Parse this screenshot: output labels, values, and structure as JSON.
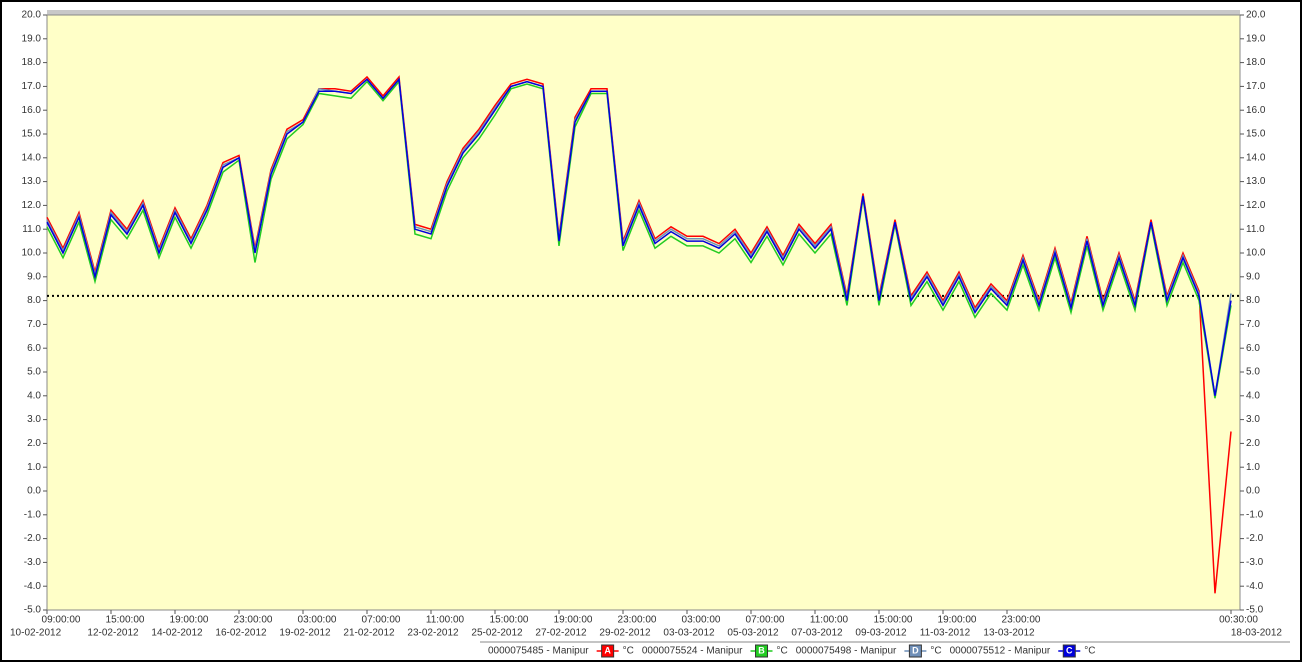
{
  "chart_data": {
    "type": "line",
    "categories": [
      "09:00:00",
      null,
      null,
      null,
      "15:00:00",
      null,
      null,
      null,
      "19:00:00",
      null,
      null,
      null,
      "23:00:00",
      null,
      null,
      null,
      "03:00:00",
      null,
      null,
      null,
      "07:00:00",
      null,
      null,
      null,
      "11:00:00",
      null,
      null,
      null,
      "15:00:00",
      null,
      null,
      null,
      "19:00:00",
      null,
      null,
      null,
      "23:00:00",
      null,
      null,
      null,
      "03:00:00",
      null,
      null,
      null,
      "07:00:00",
      null,
      null,
      null,
      "11:00:00",
      null,
      null,
      null,
      "15:00:00",
      null,
      null,
      null,
      "19:00:00",
      null,
      null,
      null,
      "23:00:00",
      null,
      null,
      null,
      null,
      null,
      null,
      null,
      null,
      null,
      null,
      null,
      null,
      null,
      "00:30:00"
    ],
    "dates": [
      "10-02-2012",
      null,
      null,
      null,
      "12-02-2012",
      null,
      null,
      null,
      "14-02-2012",
      null,
      null,
      null,
      "16-02-2012",
      null,
      null,
      null,
      "19-02-2012",
      null,
      null,
      null,
      "21-02-2012",
      null,
      null,
      null,
      "23-02-2012",
      null,
      null,
      null,
      "25-02-2012",
      null,
      null,
      null,
      "27-02-2012",
      null,
      null,
      null,
      "29-02-2012",
      null,
      null,
      null,
      "03-03-2012",
      null,
      null,
      null,
      "05-03-2012",
      null,
      null,
      null,
      "07-03-2012",
      null,
      null,
      null,
      "09-03-2012",
      null,
      null,
      null,
      "11-03-2012",
      null,
      null,
      null,
      "13-03-2012",
      null,
      null,
      null,
      null,
      null,
      null,
      null,
      null,
      null,
      null,
      null,
      null,
      null,
      "18-03-2012"
    ],
    "unit": "°C",
    "threshold": 8.2,
    "series": [
      {
        "name": "0000075485 - Manipur",
        "marker": "A",
        "color": "#ff0000",
        "values": [
          11.5,
          10.2,
          11.7,
          9.2,
          11.8,
          11.0,
          12.2,
          10.2,
          11.9,
          10.6,
          12.0,
          13.8,
          14.1,
          10.2,
          13.5,
          15.2,
          15.6,
          16.9,
          16.9,
          16.8,
          17.4,
          16.6,
          17.4,
          11.2,
          11.0,
          13.0,
          14.4,
          15.2,
          16.2,
          17.1,
          17.3,
          17.1,
          10.7,
          15.7,
          16.9,
          16.9,
          10.5,
          12.2,
          10.6,
          11.1,
          10.7,
          10.7,
          10.4,
          11.0,
          10.0,
          11.1,
          9.9,
          11.2,
          10.4,
          11.2,
          8.2,
          12.5,
          8.2,
          11.4,
          8.2,
          9.2,
          8.0,
          9.2,
          7.7,
          8.7,
          8.0,
          9.9,
          8.0,
          10.2,
          7.9,
          10.7,
          8.0,
          10.0,
          8.0,
          11.4,
          8.2,
          10.0,
          8.4,
          -4.3,
          2.5
        ]
      },
      {
        "name": "0000075524 - Manipur",
        "marker": "B",
        "color": "#22cc22",
        "values": [
          11.1,
          9.8,
          11.3,
          8.8,
          11.4,
          10.6,
          11.8,
          9.8,
          11.5,
          10.2,
          11.6,
          13.4,
          13.9,
          9.6,
          13.1,
          14.8,
          15.4,
          16.7,
          16.6,
          16.5,
          17.2,
          16.4,
          17.2,
          10.8,
          10.6,
          12.6,
          14.0,
          14.8,
          15.8,
          16.9,
          17.1,
          16.9,
          10.3,
          15.3,
          16.7,
          16.7,
          10.1,
          11.8,
          10.2,
          10.7,
          10.3,
          10.3,
          10.0,
          10.6,
          9.6,
          10.7,
          9.5,
          10.8,
          10.0,
          10.8,
          7.8,
          12.3,
          7.8,
          11.2,
          7.8,
          8.8,
          7.6,
          8.8,
          7.3,
          8.3,
          7.6,
          9.5,
          7.6,
          9.8,
          7.5,
          10.3,
          7.6,
          9.6,
          7.6,
          11.2,
          7.8,
          9.6,
          8.0,
          3.9,
          7.8
        ]
      },
      {
        "name": "0000075498 - Manipur",
        "marker": "D",
        "color": "#6f8fb8",
        "values": [
          11.4,
          10.1,
          11.6,
          9.1,
          11.7,
          10.9,
          12.1,
          10.1,
          11.8,
          10.5,
          11.9,
          13.7,
          14.0,
          10.1,
          13.4,
          15.1,
          15.5,
          16.9,
          16.8,
          16.7,
          17.3,
          16.5,
          17.3,
          11.1,
          10.9,
          12.9,
          14.3,
          15.1,
          16.1,
          17.0,
          17.2,
          17.0,
          10.6,
          15.6,
          16.8,
          16.8,
          10.4,
          12.1,
          10.5,
          11.0,
          10.6,
          10.6,
          10.3,
          10.9,
          9.9,
          11.0,
          9.8,
          11.1,
          10.3,
          11.1,
          8.1,
          12.4,
          8.1,
          11.3,
          8.1,
          9.1,
          7.9,
          9.1,
          7.6,
          8.6,
          7.9,
          9.8,
          7.9,
          10.1,
          7.8,
          10.6,
          7.9,
          9.9,
          7.9,
          11.3,
          8.1,
          9.9,
          8.3,
          4.0,
          8.3
        ]
      },
      {
        "name": "0000075512 - Manipur",
        "marker": "C",
        "color": "#0000dd",
        "values": [
          11.3,
          10.0,
          11.5,
          9.0,
          11.6,
          10.8,
          12.0,
          10.0,
          11.7,
          10.4,
          11.8,
          13.6,
          14.0,
          10.0,
          13.3,
          15.0,
          15.5,
          16.8,
          16.8,
          16.7,
          17.3,
          16.5,
          17.3,
          11.0,
          10.8,
          12.8,
          14.2,
          15.0,
          16.0,
          17.0,
          17.2,
          17.0,
          10.5,
          15.5,
          16.8,
          16.8,
          10.3,
          12.0,
          10.4,
          10.9,
          10.5,
          10.5,
          10.2,
          10.8,
          9.8,
          10.9,
          9.7,
          11.0,
          10.2,
          11.0,
          8.0,
          12.4,
          8.0,
          11.3,
          8.0,
          9.0,
          7.8,
          9.0,
          7.5,
          8.5,
          7.8,
          9.7,
          7.8,
          10.0,
          7.7,
          10.5,
          7.8,
          9.8,
          7.8,
          11.3,
          8.0,
          9.8,
          8.2,
          4.0,
          8.0
        ]
      }
    ],
    "ylim": [
      -5,
      20
    ],
    "yticks": [
      {
        "value": -5,
        "label": "-5.0"
      },
      {
        "value": -4,
        "label": "-4.0"
      },
      {
        "value": -3,
        "label": "-3.0"
      },
      {
        "value": -2,
        "label": "-2.0"
      },
      {
        "value": -1,
        "label": "-1.0"
      },
      {
        "value": 0,
        "label": "0.0"
      },
      {
        "value": 1,
        "label": "1.0"
      },
      {
        "value": 2,
        "label": "2.0"
      },
      {
        "value": 3,
        "label": "3.0"
      },
      {
        "value": 4,
        "label": "4.0"
      },
      {
        "value": 5,
        "label": "5.0"
      },
      {
        "value": 6,
        "label": "6.0"
      },
      {
        "value": 7,
        "label": "7.0"
      },
      {
        "value": 8,
        "label": "8.0"
      },
      {
        "value": 9,
        "label": "9.0"
      },
      {
        "value": 10,
        "label": "10.0"
      },
      {
        "value": 11,
        "label": "11.0"
      },
      {
        "value": 12,
        "label": "12.0"
      },
      {
        "value": 13,
        "label": "13.0"
      },
      {
        "value": 14,
        "label": "14.0"
      },
      {
        "value": 15,
        "label": "15.0"
      },
      {
        "value": 16,
        "label": "16.0"
      },
      {
        "value": 17,
        "label": "17.0"
      },
      {
        "value": 18,
        "label": "18.0"
      },
      {
        "value": 19,
        "label": "19.0"
      },
      {
        "value": 20,
        "label": "20.0"
      }
    ]
  }
}
